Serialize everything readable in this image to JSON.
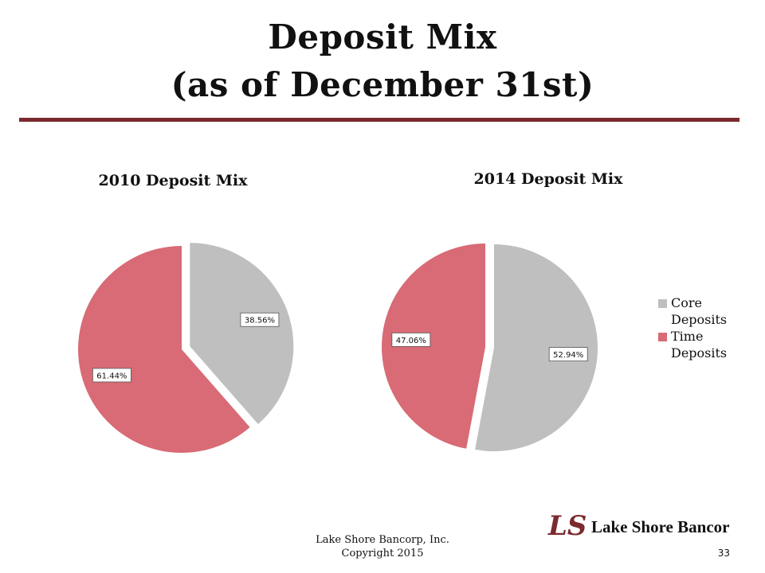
{
  "slide": {
    "title_line1": "Deposit  Mix",
    "title_line2": "(as of December 31st)",
    "rule_color": "#7b2a2f"
  },
  "legend": [
    {
      "label": "Core Deposits",
      "color": "#bfbfbf"
    },
    {
      "label": "Time Deposits",
      "color": "#d86b75"
    }
  ],
  "chart_data": [
    {
      "type": "pie",
      "title": "2010 Deposit Mix",
      "categories": [
        "Core Deposits",
        "Time Deposits"
      ],
      "values": [
        38.56,
        61.44
      ],
      "labels": [
        "38.56%",
        "61.44%"
      ],
      "colors": [
        "#bfbfbf",
        "#d86b75"
      ],
      "exploded": "Core Deposits"
    },
    {
      "type": "pie",
      "title": "2014 Deposit Mix",
      "categories": [
        "Core Deposits",
        "Time Deposits"
      ],
      "values": [
        52.94,
        47.06
      ],
      "labels": [
        "52.94%",
        "47.06%"
      ],
      "colors": [
        "#bfbfbf",
        "#d86b75"
      ],
      "exploded": "Time Deposits"
    }
  ],
  "footer": {
    "company_line": "Lake Shore Bancorp, Inc.",
    "copyright_line": "Copyright 2015",
    "page_number": "33"
  },
  "logo": {
    "mark_text": "LS",
    "company_text": "Lake Shore Bancorp, Inc.",
    "mark_color": "#7b2a2f"
  }
}
